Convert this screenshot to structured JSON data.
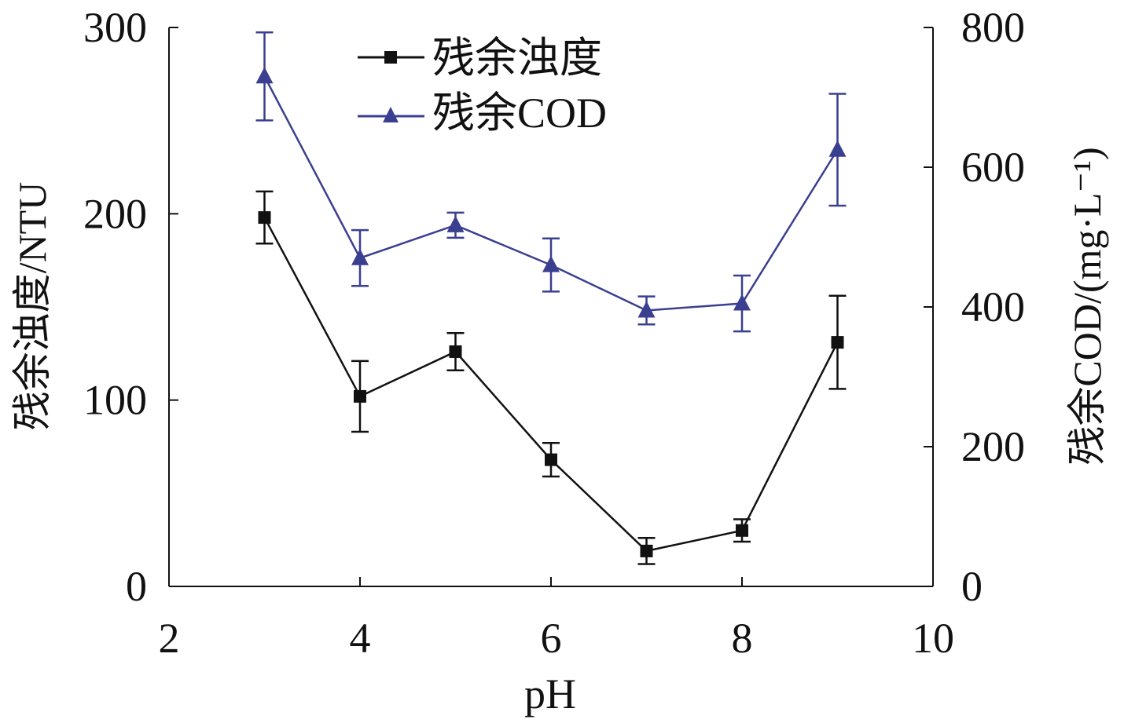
{
  "chart_data": {
    "type": "line",
    "xlabel": "pH",
    "ylabel_left": "残余浊度/NTU",
    "ylabel_right": "残余COD/(mg·L⁻¹)",
    "xlim": [
      2,
      10
    ],
    "xticks": [
      2,
      4,
      6,
      8,
      10
    ],
    "ylim_left": [
      0,
      300
    ],
    "yticks_left": [
      0,
      100,
      200,
      300
    ],
    "ylim_right": [
      0,
      800
    ],
    "yticks_right": [
      0,
      200,
      400,
      600,
      800
    ],
    "grid": false,
    "legend_position": "top",
    "x": [
      3,
      4,
      5,
      6,
      7,
      8,
      9
    ],
    "series": [
      {
        "name": "残余浊度",
        "axis": "left",
        "marker": "square",
        "color": "#111111",
        "values": [
          198,
          102,
          126,
          68,
          19,
          30,
          131
        ],
        "error": [
          14,
          19,
          10,
          9,
          7,
          6,
          25
        ]
      },
      {
        "name": "残余COD",
        "axis": "right",
        "marker": "triangle",
        "color": "#3a3f8f",
        "values": [
          730,
          470,
          517,
          460,
          395,
          405,
          625
        ],
        "error": [
          63,
          40,
          18,
          38,
          20,
          40,
          80
        ]
      }
    ]
  }
}
